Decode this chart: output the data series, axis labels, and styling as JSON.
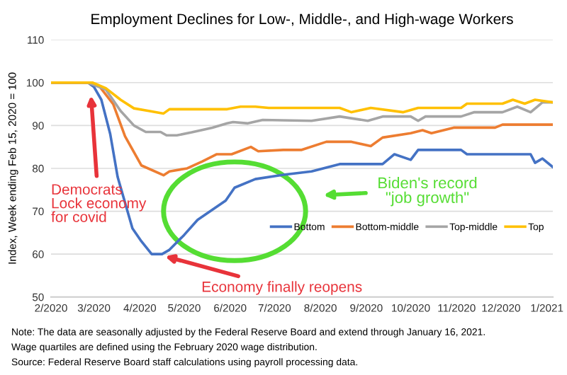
{
  "chart_data": {
    "type": "line",
    "title": "Employment Declines for Low-, Middle-, and High-wage Workers",
    "ylabel": "Index, Week ending Feb 15, 2020 = 100",
    "xlim": [
      "2020-02-01",
      "2021-01-05"
    ],
    "xticks": [
      {
        "value": "2020-02-01",
        "label": "2/2020"
      },
      {
        "value": "2020-03-01",
        "label": "3/2020"
      },
      {
        "value": "2020-04-01",
        "label": "4/2020"
      },
      {
        "value": "2020-05-01",
        "label": "5/2020"
      },
      {
        "value": "2020-06-01",
        "label": "6/2020"
      },
      {
        "value": "2020-07-01",
        "label": "7/2020"
      },
      {
        "value": "2020-08-01",
        "label": "8/2020"
      },
      {
        "value": "2020-09-01",
        "label": "9/2020"
      },
      {
        "value": "2020-10-01",
        "label": "10/2020"
      },
      {
        "value": "2020-11-01",
        "label": "11/2020"
      },
      {
        "value": "2020-12-01",
        "label": "12/2020"
      },
      {
        "value": "2021-01-01",
        "label": "1/2021"
      }
    ],
    "ylim": [
      50,
      110
    ],
    "yticks": [
      50,
      60,
      70,
      80,
      90,
      100,
      110
    ],
    "grid": "y",
    "legend": "right",
    "marker": "none",
    "line_style": "solid",
    "series": [
      {
        "name": "Bottom",
        "color": "#4472c4",
        "x": [
          "2020-02-01",
          "2020-02-26",
          "2020-03-01",
          "2020-03-06",
          "2020-03-12",
          "2020-03-17",
          "2020-03-27",
          "2020-04-02",
          "2020-04-09",
          "2020-04-16",
          "2020-04-21",
          "2020-05-01",
          "2020-05-10",
          "2020-05-29",
          "2020-06-04",
          "2020-06-18",
          "2020-07-07",
          "2020-07-26",
          "2020-08-14",
          "2020-09-12",
          "2020-09-20",
          "2020-10-01",
          "2020-10-06",
          "2020-11-04",
          "2020-11-08",
          "2020-12-21",
          "2020-12-24",
          "2020-12-29",
          "2021-01-05"
        ],
        "values": [
          100,
          100,
          99,
          96,
          88,
          78,
          66,
          63,
          60,
          60,
          61,
          64.5,
          68,
          72.5,
          75.5,
          77.5,
          78.5,
          79.3,
          81,
          81,
          83.3,
          82,
          84.3,
          84.3,
          83.3,
          83.3,
          81.3,
          82.3,
          80.3
        ]
      },
      {
        "name": "Bottom-middle",
        "color": "#ed7d31",
        "x": [
          "2020-02-01",
          "2020-02-26",
          "2020-03-05",
          "2020-03-14",
          "2020-03-22",
          "2020-04-02",
          "2020-04-17",
          "2020-04-21",
          "2020-05-03",
          "2020-05-13",
          "2020-05-23",
          "2020-06-02",
          "2020-06-15",
          "2020-06-20",
          "2020-07-07",
          "2020-07-19",
          "2020-08-05",
          "2020-08-22",
          "2020-09-04",
          "2020-09-12",
          "2020-10-01",
          "2020-10-09",
          "2020-10-15",
          "2020-10-30",
          "2020-11-27",
          "2020-12-02",
          "2021-01-05"
        ],
        "values": [
          100,
          100,
          99,
          95,
          87.5,
          80.7,
          78.4,
          79.3,
          80,
          81.6,
          83.3,
          83.3,
          85,
          84,
          84.3,
          84.3,
          86.2,
          86.2,
          85.2,
          87.2,
          88.2,
          88.9,
          88.2,
          89.5,
          89.5,
          90.2,
          90.2
        ]
      },
      {
        "name": "Top-middle",
        "color": "#a5a5a5",
        "x": [
          "2020-02-01",
          "2020-02-26",
          "2020-03-09",
          "2020-03-19",
          "2020-03-28",
          "2020-04-05",
          "2020-04-15",
          "2020-04-19",
          "2020-04-26",
          "2020-05-06",
          "2020-05-20",
          "2020-05-30",
          "2020-06-03",
          "2020-06-13",
          "2020-06-23",
          "2020-07-26",
          "2020-08-14",
          "2020-09-02",
          "2020-09-12",
          "2020-10-01",
          "2020-10-06",
          "2020-10-11",
          "2020-11-04",
          "2020-11-13",
          "2020-12-02",
          "2020-12-12",
          "2020-12-21",
          "2020-12-29",
          "2021-01-05"
        ],
        "values": [
          100,
          100,
          98.4,
          93.4,
          90,
          88.5,
          88.5,
          87.7,
          87.7,
          88.4,
          89.5,
          90.5,
          90.8,
          90.5,
          91.3,
          91.1,
          92.1,
          91.1,
          92.1,
          92.1,
          91.1,
          92.1,
          92.1,
          93.1,
          93.1,
          94.4,
          93.1,
          95.4,
          95.4
        ]
      },
      {
        "name": "Top",
        "color": "#ffc000",
        "x": [
          "2020-02-01",
          "2020-02-29",
          "2020-03-09",
          "2020-03-19",
          "2020-03-28",
          "2020-04-07",
          "2020-04-17",
          "2020-04-21",
          "2020-05-01",
          "2020-05-30",
          "2020-06-08",
          "2020-06-18",
          "2020-06-27",
          "2020-08-14",
          "2020-08-22",
          "2020-09-04",
          "2020-09-26",
          "2020-10-06",
          "2020-11-04",
          "2020-11-08",
          "2020-12-02",
          "2020-12-09",
          "2020-12-17",
          "2020-12-24",
          "2021-01-05"
        ],
        "values": [
          100,
          100,
          98.7,
          96,
          94,
          93.4,
          92.8,
          93.8,
          93.8,
          93.8,
          94.4,
          94.4,
          94.1,
          94.1,
          93.1,
          94.1,
          93.1,
          94.1,
          94.1,
          95.1,
          95.1,
          96,
          95.1,
          96,
          95.4
        ]
      }
    ],
    "annotations": [
      {
        "text": "Democrats\nLock economy\nfor covid",
        "x": "2020-02-28",
        "y": 97
      },
      {
        "text": "Economy finally reopens",
        "x": "2020-04-18",
        "y": 59.5
      },
      "Biden's record\n\"job growth\"",
      "Note: The data are seasonally adjusted by the Federal Reserve Board and extend through January 16, 2021.",
      "Wage quartiles are defined using the February 2020 wage distribution.",
      "Source: Federal Reserve Board staff calculations using payroll processing data."
    ]
  }
}
